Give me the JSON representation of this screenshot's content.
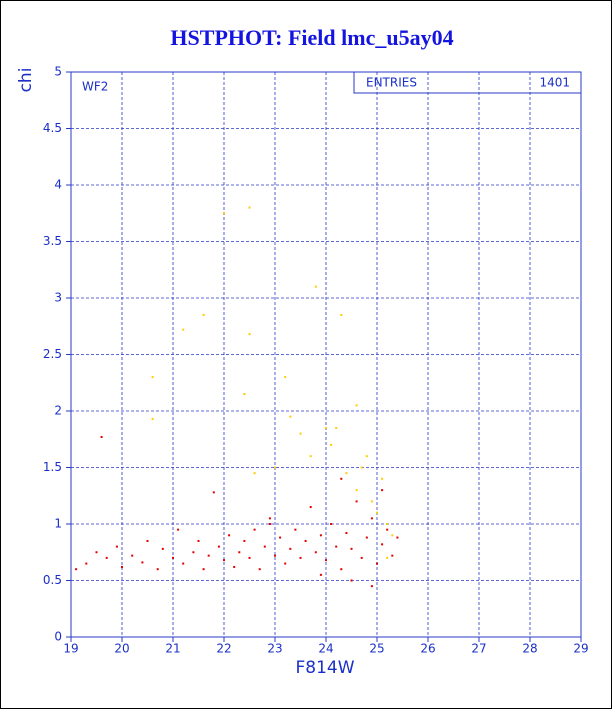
{
  "chart_data": {
    "type": "scatter",
    "title": "HSTPHOT: Field lmc_u5ay04",
    "x_label": "F814W",
    "y_label": "chi",
    "annotation": "WF2",
    "stats": {
      "label": "ENTRIES",
      "value": 1401
    },
    "xlim": [
      19,
      29
    ],
    "xticks": [
      19,
      20,
      21,
      22,
      23,
      24,
      25,
      26,
      27,
      28,
      29
    ],
    "ylim": [
      0,
      5
    ],
    "yticks": [
      0,
      0.5,
      1,
      1.5,
      2,
      2.5,
      3,
      3.5,
      4,
      4.5,
      5
    ],
    "grid": true,
    "series": [
      {
        "color": "#e00000",
        "x": [
          19.1,
          19.3,
          19.5,
          19.6,
          19.7,
          19.9,
          20.0,
          20.2,
          20.4,
          20.5,
          20.7,
          20.8,
          21.0,
          21.1,
          21.2,
          21.4,
          21.5,
          21.6,
          21.7,
          21.8,
          21.9,
          22.0,
          22.1,
          22.2,
          22.3,
          22.4,
          22.5,
          22.6,
          22.7,
          22.8,
          22.9,
          23.0,
          23.1,
          23.2,
          23.3,
          23.4,
          23.5,
          23.6,
          23.7,
          23.8,
          23.9,
          24.0,
          24.1,
          24.2,
          24.3,
          24.4,
          24.5,
          24.6,
          24.7,
          24.8,
          24.9,
          25.0,
          25.1,
          25.2,
          25.3,
          25.4,
          24.5,
          24.9,
          23.9,
          25.1,
          22.9,
          24.3
        ],
        "values": [
          0.6,
          0.65,
          0.75,
          1.77,
          0.7,
          0.8,
          0.62,
          0.72,
          0.66,
          0.85,
          0.6,
          0.78,
          0.7,
          0.95,
          0.65,
          0.75,
          0.85,
          0.6,
          0.72,
          1.28,
          0.8,
          0.68,
          0.9,
          0.62,
          0.75,
          0.85,
          0.7,
          0.95,
          0.6,
          0.8,
          1.05,
          0.72,
          0.88,
          0.65,
          0.78,
          0.95,
          0.7,
          0.85,
          1.15,
          0.75,
          0.9,
          0.68,
          1.0,
          0.8,
          0.6,
          0.92,
          0.78,
          1.2,
          0.7,
          0.88,
          1.05,
          0.65,
          0.82,
          0.95,
          0.72,
          0.88,
          0.5,
          0.45,
          0.55,
          1.3,
          1.0,
          1.4
        ]
      },
      {
        "color": "#ffcc00",
        "x": [
          21.2,
          21.6,
          22.0,
          22.5,
          22.5,
          20.6,
          20.6,
          22.4,
          23.2,
          23.3,
          23.5,
          23.8,
          24.0,
          24.3,
          24.2,
          24.6,
          24.8,
          24.4,
          24.6,
          24.9,
          25.0,
          25.2,
          25.3,
          23.7,
          23.0,
          22.6,
          24.1,
          25.1,
          24.7,
          25.2
        ],
        "values": [
          2.72,
          2.85,
          3.75,
          3.8,
          2.68,
          2.3,
          1.93,
          2.15,
          2.3,
          1.95,
          1.8,
          3.1,
          1.85,
          2.85,
          1.85,
          2.05,
          1.6,
          1.45,
          1.3,
          1.2,
          1.1,
          1.0,
          0.9,
          1.6,
          1.5,
          1.45,
          1.7,
          1.4,
          1.5,
          0.7
        ]
      }
    ]
  }
}
